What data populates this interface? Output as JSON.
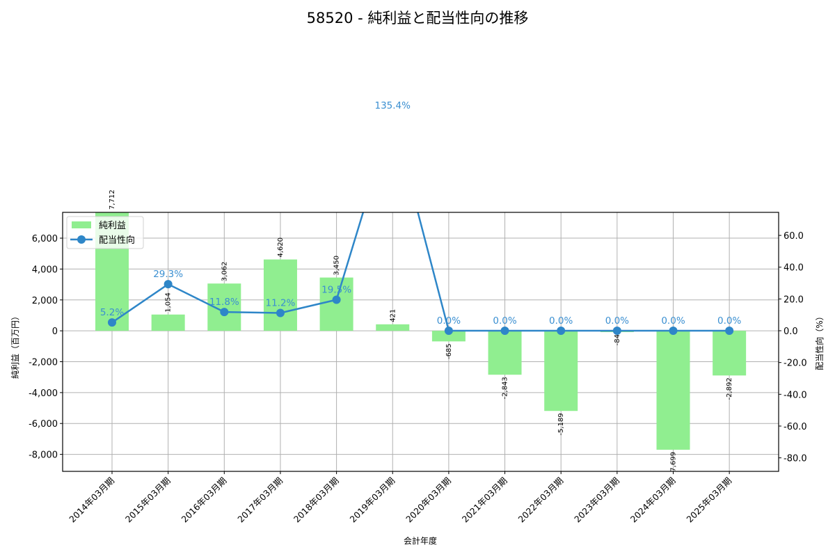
{
  "title": "58520 - 純利益と配当性向の推移",
  "chart_data": {
    "type": "bar+line",
    "title": "58520 - 純利益と配当性向の推移",
    "xlabel": "会計年度",
    "ylabel": "純利益（百万円）",
    "y2label": "配当性向（%）",
    "categories": [
      "2014年03月期",
      "2015年03月期",
      "2016年03月期",
      "2017年03月期",
      "2018年03月期",
      "2019年03月期",
      "2020年03月期",
      "2021年03月期",
      "2022年03月期",
      "2023年03月期",
      "2024年03月期",
      "2025年03月期"
    ],
    "series": [
      {
        "name": "純利益",
        "type": "bar",
        "axis": "left",
        "color": "#90ee90",
        "values": [
          7712,
          1054,
          3062,
          4620,
          3450,
          421,
          -685,
          -2843,
          -5189,
          -84,
          -7699,
          -2892
        ],
        "labels": [
          "7,712",
          "1,054",
          "3,062",
          "4,620",
          "3,450",
          "421",
          "-685",
          "-2,843",
          "-5,189",
          "-84",
          "-7,699",
          "-2,892"
        ]
      },
      {
        "name": "配当性向",
        "type": "line",
        "axis": "right",
        "color": "#2e86c8",
        "values": [
          5.2,
          29.3,
          11.8,
          11.2,
          19.5,
          135.4,
          0.0,
          0.0,
          0.0,
          0.0,
          0.0,
          0.0
        ],
        "labels": [
          "5.2%",
          "29.3%",
          "11.8%",
          "11.2%",
          "19.5%",
          "135.4%",
          "0.0%",
          "0.0%",
          "0.0%",
          "0.0%",
          "0.0%",
          "0.0%"
        ]
      }
    ],
    "ylim": [
      -9100,
      7670
    ],
    "y2lim": [
      -88.5,
      74.5
    ],
    "yticks": [
      -8000,
      -6000,
      -4000,
      -2000,
      0,
      2000,
      4000,
      6000
    ],
    "ytick_labels": [
      "-8,000",
      "-6,000",
      "-4,000",
      "-2,000",
      "0",
      "2,000",
      "4,000",
      "6,000"
    ],
    "y2ticks": [
      -80,
      -60,
      -40,
      -20,
      0,
      20,
      40,
      60
    ],
    "y2tick_labels": [
      "-80.0",
      "-60.0",
      "-40.0",
      "-20.0",
      "0.0",
      "20.0",
      "40.0",
      "60.0"
    ],
    "grid": true,
    "legend_position": "upper left",
    "legend": [
      "純利益",
      "配当性向"
    ]
  }
}
